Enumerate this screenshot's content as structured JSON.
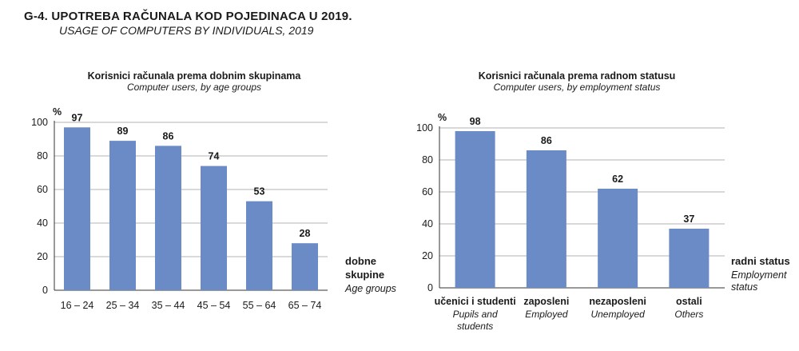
{
  "header": {
    "title": "G-4.  UPOTREBA RAČUNALA KOD POJEDINACA U 2019.",
    "subtitle": "USAGE OF COMPUTERS BY INDIVIDUALS, 2019"
  },
  "colors": {
    "bar": "#6b8bc6",
    "grid": "#9a9a9a",
    "axis": "#333333"
  },
  "chart_data": [
    {
      "type": "bar",
      "title": "Korisnici računala prema dobnim skupinama",
      "subtitle": "Computer users, by age groups",
      "ylabel": "%",
      "xlabel": "dobne skupine",
      "xlabel_en": "Age groups",
      "categories": [
        "16 – 24",
        "25 – 34",
        "35 – 44",
        "45 – 54",
        "55 – 64",
        "65 – 74"
      ],
      "values": [
        97,
        89,
        86,
        74,
        53,
        28
      ],
      "ylim": [
        0,
        100
      ],
      "yticks": [
        "0",
        "20",
        "40",
        "60",
        "80",
        "100"
      ],
      "grid": true
    },
    {
      "type": "bar",
      "title": "Korisnici računala prema radnom statusu",
      "subtitle": "Computer users, by employment status",
      "ylabel": "%",
      "xlabel": "radni status",
      "xlabel_en": "Employment status",
      "categories": [
        "učenici i studenti",
        "zaposleni",
        "nezaposleni",
        "ostali"
      ],
      "categories_en": [
        "Pupils and students",
        "Employed",
        "Unemployed",
        "Others"
      ],
      "values": [
        98,
        86,
        62,
        37
      ],
      "ylim": [
        0,
        100
      ],
      "yticks": [
        "0",
        "20",
        "40",
        "60",
        "80",
        "100"
      ],
      "grid": true
    }
  ]
}
